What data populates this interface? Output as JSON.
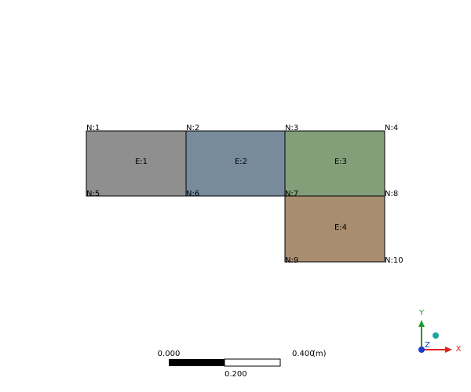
{
  "elements": [
    {
      "id": "E:1",
      "label": "E:1",
      "color": "#8f8f8f"
    },
    {
      "id": "E:2",
      "label": "E:2",
      "color": "#778b9c"
    },
    {
      "id": "E:3",
      "label": "E:3",
      "color": "#839f7a"
    },
    {
      "id": "E:4",
      "label": "E:4",
      "color": "#a88d6f"
    }
  ],
  "nodes": [
    {
      "label": "N:1"
    },
    {
      "label": "N:2"
    },
    {
      "label": "N:3"
    },
    {
      "label": "N:4"
    },
    {
      "label": "N:5"
    },
    {
      "label": "N:6"
    },
    {
      "label": "N:7"
    },
    {
      "label": "N:8"
    },
    {
      "label": "N:9"
    },
    {
      "label": "N:10"
    }
  ],
  "scale_bar": {
    "start_label": "0.000",
    "mid_label": "0.200",
    "end_label": "0.400",
    "unit": "(m)"
  },
  "triad": {
    "x_label": "X",
    "y_label": "Y",
    "z_label": "Z",
    "x_color": "#e0211f",
    "y_color": "#1f9a2a",
    "z_color": "#1b3ccf",
    "center_color": "#18a6a0"
  }
}
